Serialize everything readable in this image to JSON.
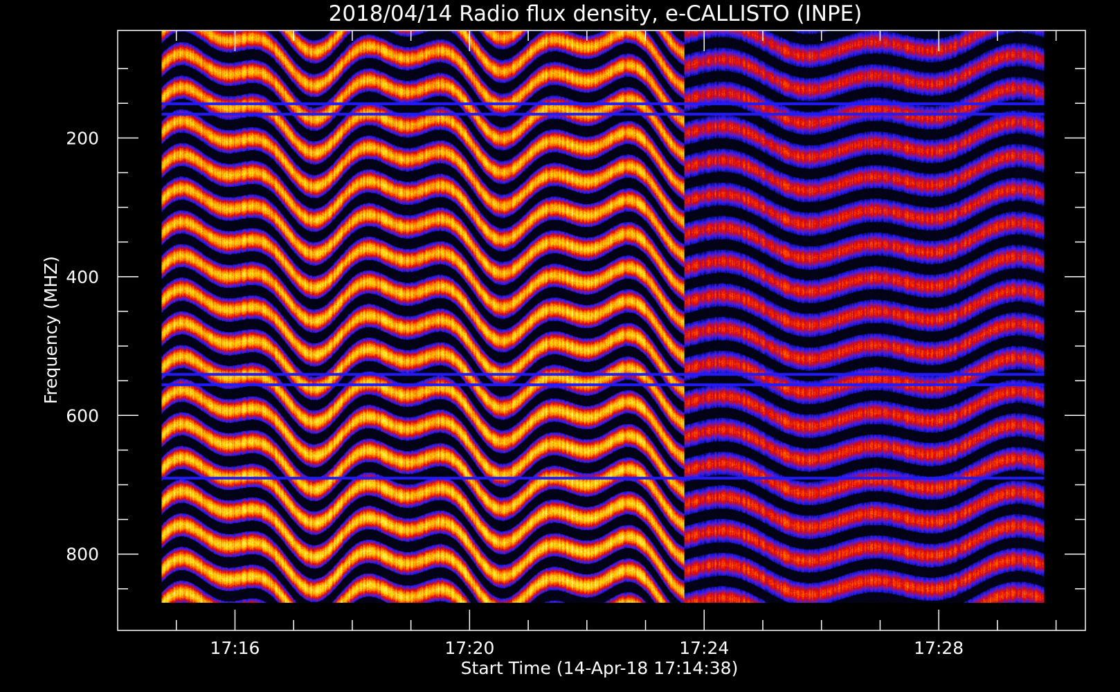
{
  "chart_data": {
    "type": "heatmap",
    "title": "2018/04/14  Radio flux density, e-CALLISTO (INPE)",
    "xlabel": "Start Time (14-Apr-18 17:14:38)",
    "ylabel": "Frequency (MHZ)",
    "x_ticks": [
      "17:16",
      "17:20",
      "17:24",
      "17:28"
    ],
    "x_tick_minutes": [
      16,
      20,
      24,
      28
    ],
    "x_range_minutes": [
      14.0,
      30.5
    ],
    "data_range_minutes": [
      14.75,
      29.8
    ],
    "y_ticks": [
      200,
      400,
      600,
      800
    ],
    "y_range": [
      45,
      910
    ],
    "data_freq_range": [
      45,
      870
    ],
    "y_inverted": true,
    "colormap": [
      "#000000",
      "#0a0a4a",
      "#1a1aff",
      "#6a20c0",
      "#e00000",
      "#ff5a00",
      "#ffd000",
      "#ffff80"
    ],
    "pattern": {
      "bands": 17,
      "phase_break_minute": 23.65,
      "left_intensity": 0.78,
      "right_intensity": 0.55,
      "interference_lines_mhz": [
        150,
        165,
        540,
        555,
        690
      ]
    }
  }
}
